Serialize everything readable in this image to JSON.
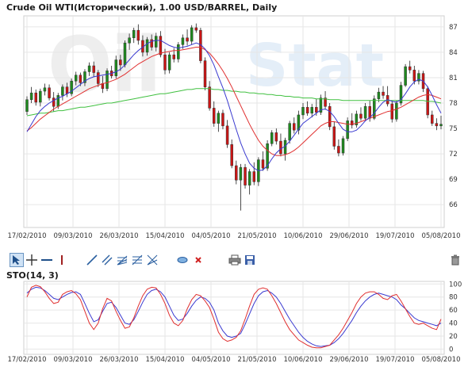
{
  "title": "Crude Oil WTI(Исторический), 1.00 USD/BARREL, Daily",
  "watermark": {
    "left": "Oil",
    "right": "Stat"
  },
  "colors": {
    "up": "#1e8a1e",
    "down": "#cc1515",
    "sma_fast": "#3a3ad0",
    "sma_slow": "#e03030",
    "sma_long": "#40c040",
    "grid": "#e6e6e6"
  },
  "toolbar": {
    "tools": [
      "pointer-tool",
      "crosshair-tool",
      "horizontal-line-tool",
      "vertical-line-tool",
      "trend-line-tool",
      "parallel-channel-tool",
      "fibonacci-fan-tool",
      "fibonacci-levels-tool",
      "gann-tool",
      "ellipse-tool",
      "delete-object-tool",
      "print-tool",
      "save-tool",
      "trash-tool"
    ]
  },
  "chart_data": [
    {
      "type": "candlestick",
      "title": "Crude Oil WTI(Исторический), 1.00 USD/BARREL, Daily",
      "y_ticks": [
        66,
        69,
        72,
        75,
        78,
        81,
        84,
        87
      ],
      "ylim": [
        63.3,
        88.3
      ],
      "x_tick_labels": [
        "17/02/2010",
        "09/03/2010",
        "26/03/2010",
        "15/04/2010",
        "04/05/2010",
        "21/05/2010",
        "10/06/2010",
        "29/06/2010",
        "19/07/2010",
        "05/08/2010"
      ],
      "grid": true,
      "ohlc": [
        [
          77.0,
          78.8,
          76.6,
          78.4
        ],
        [
          78.4,
          79.9,
          78.0,
          79.2
        ],
        [
          79.2,
          79.6,
          77.7,
          78.1
        ],
        [
          78.1,
          79.7,
          77.6,
          79.4
        ],
        [
          79.4,
          80.3,
          78.9,
          79.8
        ],
        [
          79.8,
          80.2,
          78.3,
          78.6
        ],
        [
          78.6,
          79.3,
          77.0,
          77.6
        ],
        [
          77.6,
          79.2,
          77.3,
          78.9
        ],
        [
          78.9,
          80.2,
          78.3,
          79.9
        ],
        [
          79.9,
          80.4,
          78.7,
          79.1
        ],
        [
          79.1,
          80.9,
          78.8,
          80.6
        ],
        [
          80.6,
          81.7,
          80.1,
          81.3
        ],
        [
          81.3,
          81.6,
          80.0,
          80.4
        ],
        [
          80.4,
          82.0,
          80.0,
          81.7
        ],
        [
          81.7,
          82.8,
          81.2,
          82.4
        ],
        [
          82.4,
          82.9,
          81.1,
          81.6
        ],
        [
          81.6,
          81.9,
          79.9,
          80.3
        ],
        [
          80.3,
          81.2,
          79.2,
          79.7
        ],
        [
          79.7,
          82.1,
          79.4,
          81.8
        ],
        [
          81.8,
          82.4,
          80.9,
          81.2
        ],
        [
          81.2,
          83.6,
          80.9,
          83.1
        ],
        [
          83.1,
          83.7,
          81.8,
          82.5
        ],
        [
          82.5,
          85.4,
          82.2,
          85.1
        ],
        [
          85.1,
          86.2,
          84.3,
          85.7
        ],
        [
          85.7,
          86.9,
          85.1,
          86.6
        ],
        [
          86.6,
          87.3,
          84.9,
          85.4
        ],
        [
          85.4,
          86.0,
          83.5,
          84.0
        ],
        [
          84.0,
          85.8,
          83.6,
          85.5
        ],
        [
          85.5,
          86.1,
          84.2,
          84.6
        ],
        [
          84.6,
          86.3,
          84.1,
          85.9
        ],
        [
          85.9,
          86.5,
          83.4,
          83.7
        ],
        [
          83.7,
          84.4,
          81.4,
          81.9
        ],
        [
          81.9,
          84.0,
          81.5,
          83.7
        ],
        [
          83.7,
          84.5,
          82.8,
          83.2
        ],
        [
          83.2,
          85.2,
          82.8,
          84.9
        ],
        [
          84.9,
          86.1,
          84.4,
          85.7
        ],
        [
          85.7,
          86.7,
          84.8,
          85.3
        ],
        [
          85.3,
          87.2,
          84.9,
          86.9
        ],
        [
          86.9,
          87.4,
          86.3,
          86.6
        ],
        [
          86.6,
          86.9,
          82.7,
          83.0
        ],
        [
          83.0,
          83.4,
          79.5,
          79.9
        ],
        [
          79.9,
          80.6,
          77.1,
          77.4
        ],
        [
          77.4,
          78.2,
          75.2,
          75.6
        ],
        [
          75.6,
          77.1,
          74.6,
          76.8
        ],
        [
          76.8,
          77.2,
          74.9,
          75.3
        ],
        [
          75.3,
          76.0,
          72.7,
          73.1
        ],
        [
          73.1,
          73.7,
          70.3,
          70.6
        ],
        [
          70.6,
          71.2,
          68.4,
          68.9
        ],
        [
          68.9,
          70.8,
          65.3,
          70.4
        ],
        [
          70.4,
          70.8,
          67.9,
          68.3
        ],
        [
          68.3,
          70.2,
          67.2,
          69.9
        ],
        [
          69.9,
          71.0,
          68.3,
          68.7
        ],
        [
          68.7,
          71.6,
          68.2,
          71.3
        ],
        [
          71.3,
          72.3,
          70.0,
          70.3
        ],
        [
          70.3,
          73.6,
          70.0,
          73.2
        ],
        [
          73.2,
          74.8,
          72.9,
          74.5
        ],
        [
          74.5,
          75.0,
          73.1,
          73.5
        ],
        [
          73.5,
          74.4,
          71.7,
          72.0
        ],
        [
          72.0,
          73.9,
          71.2,
          73.6
        ],
        [
          73.6,
          75.9,
          73.2,
          75.6
        ],
        [
          75.6,
          76.3,
          74.4,
          74.8
        ],
        [
          74.8,
          77.1,
          74.3,
          76.6
        ],
        [
          76.6,
          78.0,
          76.1,
          77.5
        ],
        [
          77.5,
          78.2,
          76.5,
          76.8
        ],
        [
          76.8,
          77.9,
          76.3,
          77.5
        ],
        [
          77.5,
          78.5,
          76.5,
          76.9
        ],
        [
          76.9,
          79.0,
          76.6,
          78.6
        ],
        [
          78.6,
          79.4,
          77.2,
          77.6
        ],
        [
          77.6,
          78.0,
          74.8,
          75.2
        ],
        [
          75.2,
          75.8,
          72.5,
          72.9
        ],
        [
          72.9,
          73.7,
          71.7,
          72.1
        ],
        [
          72.1,
          74.1,
          71.8,
          73.8
        ],
        [
          73.8,
          76.3,
          73.5,
          75.9
        ],
        [
          75.9,
          76.8,
          75.0,
          75.4
        ],
        [
          75.4,
          77.1,
          75.1,
          76.7
        ],
        [
          76.7,
          77.5,
          75.9,
          76.2
        ],
        [
          76.2,
          78.0,
          75.9,
          77.6
        ],
        [
          77.6,
          78.3,
          75.8,
          76.2
        ],
        [
          76.2,
          78.9,
          76.0,
          78.5
        ],
        [
          78.5,
          79.8,
          78.1,
          79.3
        ],
        [
          79.3,
          80.0,
          78.5,
          78.9
        ],
        [
          78.9,
          80.0,
          77.6,
          77.9
        ],
        [
          77.9,
          78.3,
          75.7,
          76.1
        ],
        [
          76.1,
          78.3,
          75.8,
          78.0
        ],
        [
          78.0,
          80.5,
          77.7,
          80.1
        ],
        [
          80.1,
          82.6,
          79.9,
          82.3
        ],
        [
          82.3,
          83.0,
          81.5,
          81.9
        ],
        [
          81.9,
          82.4,
          80.2,
          80.6
        ],
        [
          80.6,
          81.9,
          80.2,
          81.5
        ],
        [
          81.5,
          81.8,
          79.3,
          79.7
        ],
        [
          79.7,
          80.0,
          76.2,
          76.6
        ],
        [
          76.6,
          77.1,
          75.3,
          75.6
        ],
        [
          75.6,
          76.2,
          74.8,
          75.3
        ],
        [
          75.3,
          76.5,
          74.9,
          75.5
        ]
      ],
      "sma_fast": [
        74.6,
        75.5,
        76.4,
        77.1,
        77.6,
        78.0,
        78.3,
        78.6,
        78.8,
        79.1,
        79.4,
        79.8,
        80.2,
        80.6,
        80.9,
        81.1,
        81.2,
        81.3,
        81.4,
        81.5,
        81.7,
        82.0,
        82.5,
        83.1,
        83.7,
        84.2,
        84.6,
        85.0,
        85.3,
        85.4,
        85.4,
        85.1,
        84.8,
        84.6,
        84.5,
        84.6,
        84.7,
        84.9,
        85.1,
        84.9,
        84.4,
        83.6,
        82.5,
        81.1,
        79.8,
        78.3,
        76.6,
        74.9,
        73.3,
        72.0,
        70.9,
        70.3,
        70.0,
        70.1,
        70.6,
        71.4,
        72.1,
        72.6,
        72.9,
        73.5,
        74.2,
        74.9,
        75.6,
        76.0,
        76.4,
        76.8,
        77.2,
        77.3,
        77.0,
        76.4,
        75.6,
        74.9,
        74.6,
        74.6,
        74.8,
        75.3,
        75.9,
        76.3,
        76.8,
        77.5,
        78.1,
        78.4,
        78.2,
        78.1,
        78.4,
        79.1,
        79.9,
        80.5,
        80.8,
        80.6,
        79.9,
        78.9,
        77.8,
        76.8
      ],
      "sma_slow": [
        74.7,
        75.1,
        75.6,
        76.1,
        76.5,
        76.9,
        77.3,
        77.6,
        77.9,
        78.2,
        78.5,
        78.8,
        79.1,
        79.4,
        79.7,
        79.9,
        80.1,
        80.3,
        80.4,
        80.6,
        80.8,
        81.1,
        81.4,
        81.8,
        82.2,
        82.6,
        82.9,
        83.2,
        83.5,
        83.7,
        83.9,
        84.0,
        84.1,
        84.2,
        84.2,
        84.3,
        84.4,
        84.5,
        84.6,
        84.6,
        84.3,
        83.9,
        83.3,
        82.6,
        81.8,
        80.9,
        79.9,
        78.8,
        77.7,
        76.6,
        75.5,
        74.5,
        73.6,
        72.9,
        72.4,
        72.0,
        71.8,
        71.8,
        71.9,
        72.1,
        72.4,
        72.8,
        73.3,
        73.8,
        74.3,
        74.8,
        75.3,
        75.6,
        75.8,
        75.8,
        75.7,
        75.6,
        75.5,
        75.5,
        75.6,
        75.8,
        76.0,
        76.2,
        76.4,
        76.6,
        76.8,
        77.0,
        77.1,
        77.3,
        77.5,
        77.8,
        78.1,
        78.4,
        78.7,
        78.9,
        79.0,
        78.9,
        78.7,
        78.5
      ],
      "sma_long": [
        76.5,
        76.6,
        76.7,
        76.8,
        76.8,
        76.9,
        77.0,
        77.1,
        77.1,
        77.2,
        77.3,
        77.4,
        77.5,
        77.5,
        77.6,
        77.7,
        77.8,
        77.9,
        78.0,
        78.0,
        78.1,
        78.2,
        78.3,
        78.4,
        78.5,
        78.6,
        78.7,
        78.8,
        78.9,
        79.0,
        79.1,
        79.1,
        79.2,
        79.3,
        79.4,
        79.5,
        79.6,
        79.6,
        79.7,
        79.7,
        79.7,
        79.7,
        79.6,
        79.6,
        79.5,
        79.5,
        79.4,
        79.4,
        79.3,
        79.3,
        79.2,
        79.2,
        79.1,
        79.1,
        79.0,
        79.0,
        78.9,
        78.9,
        78.8,
        78.8,
        78.7,
        78.7,
        78.6,
        78.6,
        78.6,
        78.5,
        78.5,
        78.5,
        78.4,
        78.4,
        78.4,
        78.3,
        78.3,
        78.3,
        78.3,
        78.3,
        78.3,
        78.3,
        78.3,
        78.3,
        78.3,
        78.3,
        78.3,
        78.3,
        78.3,
        78.3,
        78.3,
        78.3,
        78.3,
        78.3,
        78.2,
        78.2,
        78.1,
        78.0
      ]
    },
    {
      "type": "line",
      "title": "STO(14, 3)",
      "y_ticks": [
        0,
        20,
        40,
        60,
        80,
        100
      ],
      "ylim": [
        -8,
        104
      ],
      "x_tick_labels": [
        "17/02/2010",
        "09/03/2010",
        "26/03/2010",
        "15/04/2010",
        "04/05/2010",
        "21/05/2010",
        "10/06/2010",
        "29/06/2010",
        "19/07/2010",
        "05/08/2010"
      ],
      "grid": true,
      "series": [
        {
          "color": "#3a3ad0",
          "values": [
            86,
            92,
            95,
            94,
            90,
            84,
            78,
            76,
            80,
            84,
            87,
            88,
            84,
            70,
            55,
            42,
            45,
            58,
            70,
            72,
            64,
            52,
            40,
            38,
            45,
            58,
            72,
            84,
            90,
            92,
            88,
            80,
            66,
            52,
            44,
            46,
            55,
            66,
            75,
            80,
            78,
            72,
            60,
            40,
            28,
            20,
            18,
            20,
            24,
            38,
            54,
            70,
            82,
            88,
            90,
            86,
            80,
            70,
            58,
            46,
            36,
            26,
            18,
            12,
            8,
            5,
            4,
            5,
            6,
            10,
            16,
            24,
            34,
            44,
            56,
            66,
            74,
            80,
            84,
            86,
            84,
            82,
            80,
            76,
            68,
            62,
            55,
            48,
            44,
            42,
            40,
            38,
            36,
            40
          ]
        },
        {
          "color": "#e03030",
          "values": [
            80,
            95,
            98,
            96,
            88,
            78,
            70,
            72,
            84,
            88,
            90,
            85,
            76,
            58,
            40,
            30,
            40,
            62,
            78,
            74,
            58,
            44,
            32,
            34,
            48,
            66,
            82,
            92,
            95,
            94,
            84,
            70,
            52,
            40,
            36,
            44,
            62,
            76,
            84,
            82,
            74,
            64,
            46,
            26,
            16,
            12,
            14,
            18,
            28,
            46,
            66,
            84,
            92,
            94,
            92,
            82,
            70,
            56,
            42,
            30,
            22,
            14,
            10,
            6,
            3,
            2,
            2,
            4,
            6,
            14,
            22,
            32,
            44,
            56,
            70,
            80,
            86,
            88,
            88,
            84,
            78,
            76,
            82,
            84,
            74,
            62,
            50,
            40,
            38,
            40,
            36,
            32,
            30,
            46
          ]
        }
      ]
    }
  ]
}
